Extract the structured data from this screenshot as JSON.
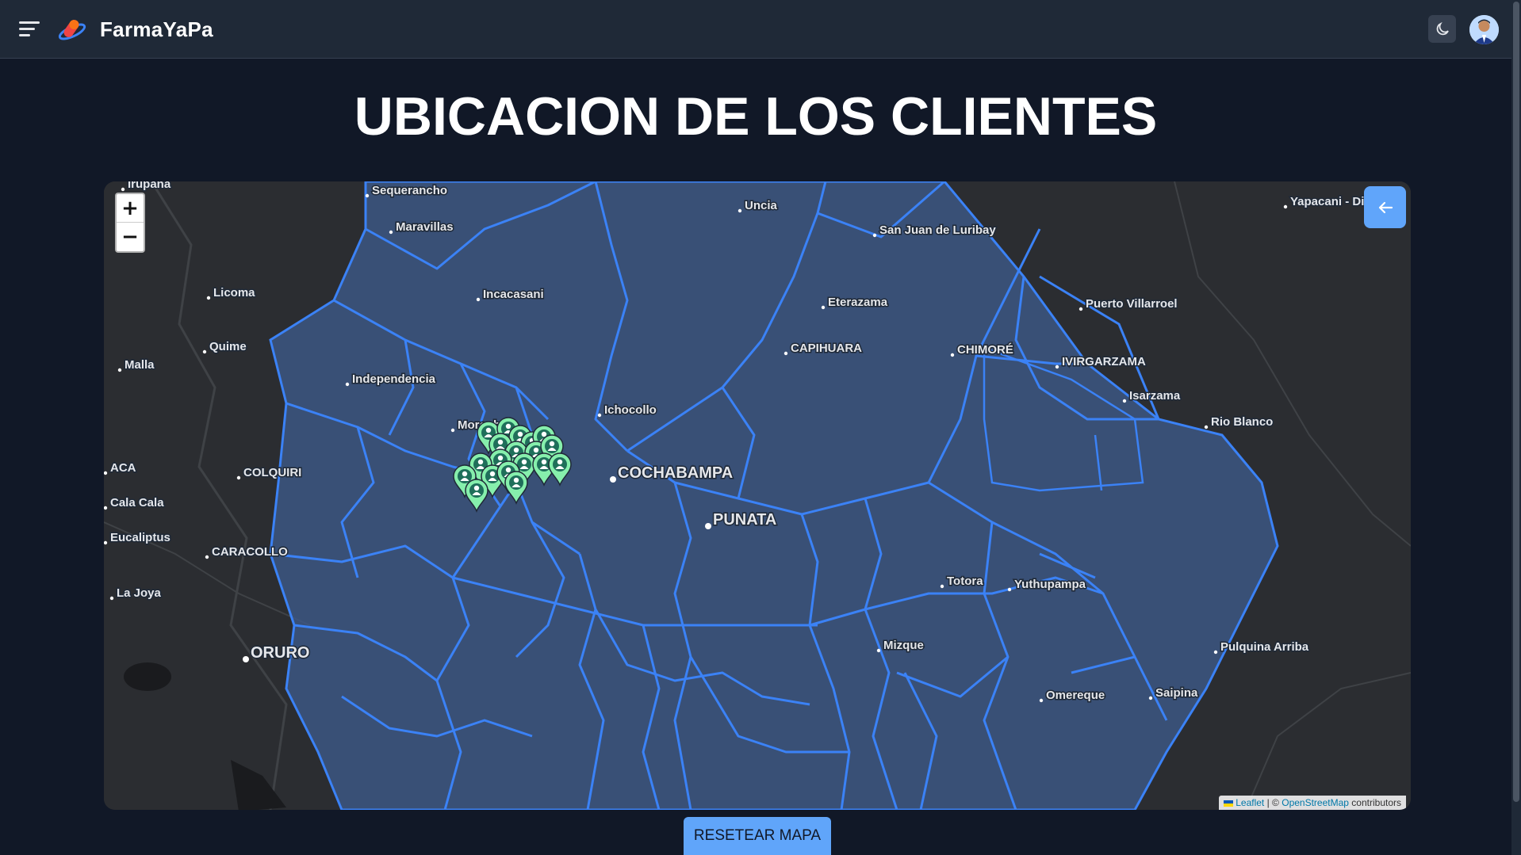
{
  "header": {
    "brand": "FarmaYaPa",
    "menu_icon": "hamburger-icon",
    "logo_icon": "pharmacy-logo-icon",
    "theme_icon": "moon-icon",
    "avatar_icon": "user-avatar-icon"
  },
  "page": {
    "title": "UBICACION DE LOS CLIENTES"
  },
  "map": {
    "zoom_in": "+",
    "zoom_out": "−",
    "back_icon": "arrow-left-icon",
    "marker_icon": "user-location-pin-icon",
    "attribution": {
      "leaflet": "Leaflet",
      "separator": "| ©",
      "osm": "OpenStreetMap",
      "contributors": "contributors"
    },
    "places": [
      {
        "name": "Irupana",
        "big": false
      },
      {
        "name": "Sequerancho",
        "big": false
      },
      {
        "name": "Uncia",
        "big": false
      },
      {
        "name": "Yapacani - Dis",
        "big": false
      },
      {
        "name": "Maravillas",
        "big": false
      },
      {
        "name": "San Juan de Luribay",
        "big": false
      },
      {
        "name": "Licoma",
        "big": false
      },
      {
        "name": "Incacasani",
        "big": false
      },
      {
        "name": "Eterazama",
        "big": false
      },
      {
        "name": "Puerto Villarroel",
        "big": false
      },
      {
        "name": "Quime",
        "big": false
      },
      {
        "name": "CAPIHUARA",
        "big": false
      },
      {
        "name": "CHIMORÉ",
        "big": false
      },
      {
        "name": "IVIRGARZAMA",
        "big": false
      },
      {
        "name": "Malla",
        "big": false
      },
      {
        "name": "Independencia",
        "big": false
      },
      {
        "name": "Isarzama",
        "big": false
      },
      {
        "name": "Ichocollo",
        "big": false
      },
      {
        "name": "Rio Blanco",
        "big": false
      },
      {
        "name": "Morochata",
        "big": false
      },
      {
        "name": "ACA",
        "big": false
      },
      {
        "name": "COLQUIRI",
        "big": false
      },
      {
        "name": "COCHABAMPA",
        "big": true
      },
      {
        "name": "Cala Cala",
        "big": false
      },
      {
        "name": "PUNATA",
        "big": true
      },
      {
        "name": "Eucaliptus",
        "big": false
      },
      {
        "name": "CARACOLLO",
        "big": false
      },
      {
        "name": "Totora",
        "big": false
      },
      {
        "name": "Yuthupampa",
        "big": false
      },
      {
        "name": "La Joya",
        "big": false
      },
      {
        "name": "ORURO",
        "big": true
      },
      {
        "name": "Mizque",
        "big": false
      },
      {
        "name": "Pulquina Arriba",
        "big": false
      },
      {
        "name": "Omereque",
        "big": false
      },
      {
        "name": "Saipina",
        "big": false
      }
    ]
  },
  "actions": {
    "reset": "RESETEAR MAPA"
  },
  "colors": {
    "accent": "#60a5fa",
    "boundary": "#3b82f6",
    "region_fill": "#3d5a8a",
    "marker": "#86efac"
  }
}
